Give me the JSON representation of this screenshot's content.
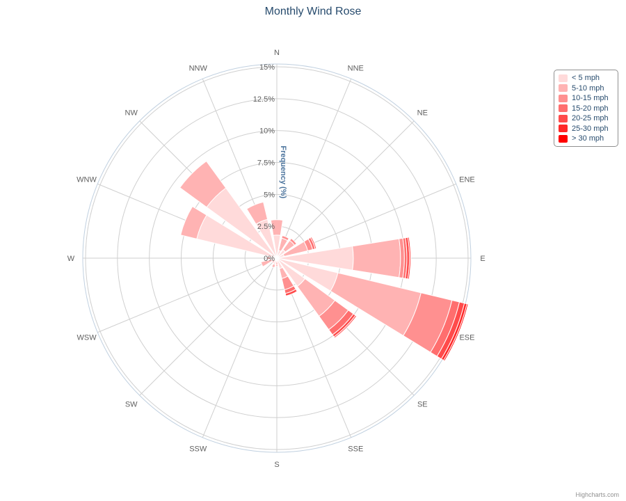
{
  "chart_data": {
    "type": "bar",
    "polar": true,
    "stacking": "normal",
    "title": "Monthly Wind Rose",
    "categories": [
      "N",
      "NNE",
      "NE",
      "ENE",
      "E",
      "ESE",
      "SE",
      "SSE",
      "S",
      "SSW",
      "SW",
      "WSW",
      "W",
      "WNW",
      "NW",
      "NNW"
    ],
    "ylabel": "Frequency (%)",
    "ylim": [
      0,
      15
    ],
    "y_ticks": [
      "0%",
      "2.5%",
      "5%",
      "7.5%",
      "10%",
      "12.5%",
      "15%"
    ],
    "grid": true,
    "legend_position": "top-right",
    "series": [
      {
        "name": "< 5 mph",
        "color": "#ffdada",
        "values": [
          1.81,
          0.62,
          0.82,
          0.59,
          6.0,
          4.93,
          2.73,
          0.85,
          0.24,
          0.52,
          0.19,
          0.38,
          0.5,
          6.46,
          6.8,
          3.13
        ]
      },
      {
        "name": "5-10 mph",
        "color": "#ffb3b3",
        "values": [
          1.2,
          1.0,
          0.9,
          1.9,
          3.7,
          6.7,
          2.9,
          0.8,
          0.3,
          0.25,
          0.3,
          0.9,
          0.3,
          1.3,
          2.6,
          1.4
        ]
      },
      {
        "name": "10-15 mph",
        "color": "#ff9090",
        "values": [
          0.0,
          0.2,
          0.2,
          0.4,
          0.3,
          2.5,
          1.3,
          0.9,
          0.1,
          0.0,
          0.0,
          0.0,
          0.0,
          0.0,
          0.0,
          0.0
        ]
      },
      {
        "name": "15-20 mph",
        "color": "#ff6e6e",
        "values": [
          0.0,
          0.0,
          0.0,
          0.2,
          0.2,
          0.6,
          0.5,
          0.3,
          0.0,
          0.0,
          0.0,
          0.0,
          0.0,
          0.0,
          0.0,
          0.0
        ]
      },
      {
        "name": "20-25 mph",
        "color": "#ff4b4b",
        "values": [
          0.0,
          0.0,
          0.0,
          0.1,
          0.2,
          0.4,
          0.2,
          0.2,
          0.0,
          0.0,
          0.0,
          0.0,
          0.0,
          0.0,
          0.0,
          0.0
        ]
      },
      {
        "name": "25-30 mph",
        "color": "#ff2828",
        "values": [
          0.0,
          0.0,
          0.0,
          0.0,
          0.1,
          0.2,
          0.1,
          0.0,
          0.0,
          0.0,
          0.0,
          0.0,
          0.0,
          0.0,
          0.0,
          0.0
        ]
      },
      {
        "name": "> 30 mph",
        "color": "#ff0000",
        "values": [
          0.0,
          0.0,
          0.0,
          0.0,
          0.0,
          0.1,
          0.0,
          0.0,
          0.0,
          0.0,
          0.0,
          0.0,
          0.0,
          0.0,
          0.0,
          0.0
        ]
      }
    ]
  },
  "credits": "Highcharts.com"
}
